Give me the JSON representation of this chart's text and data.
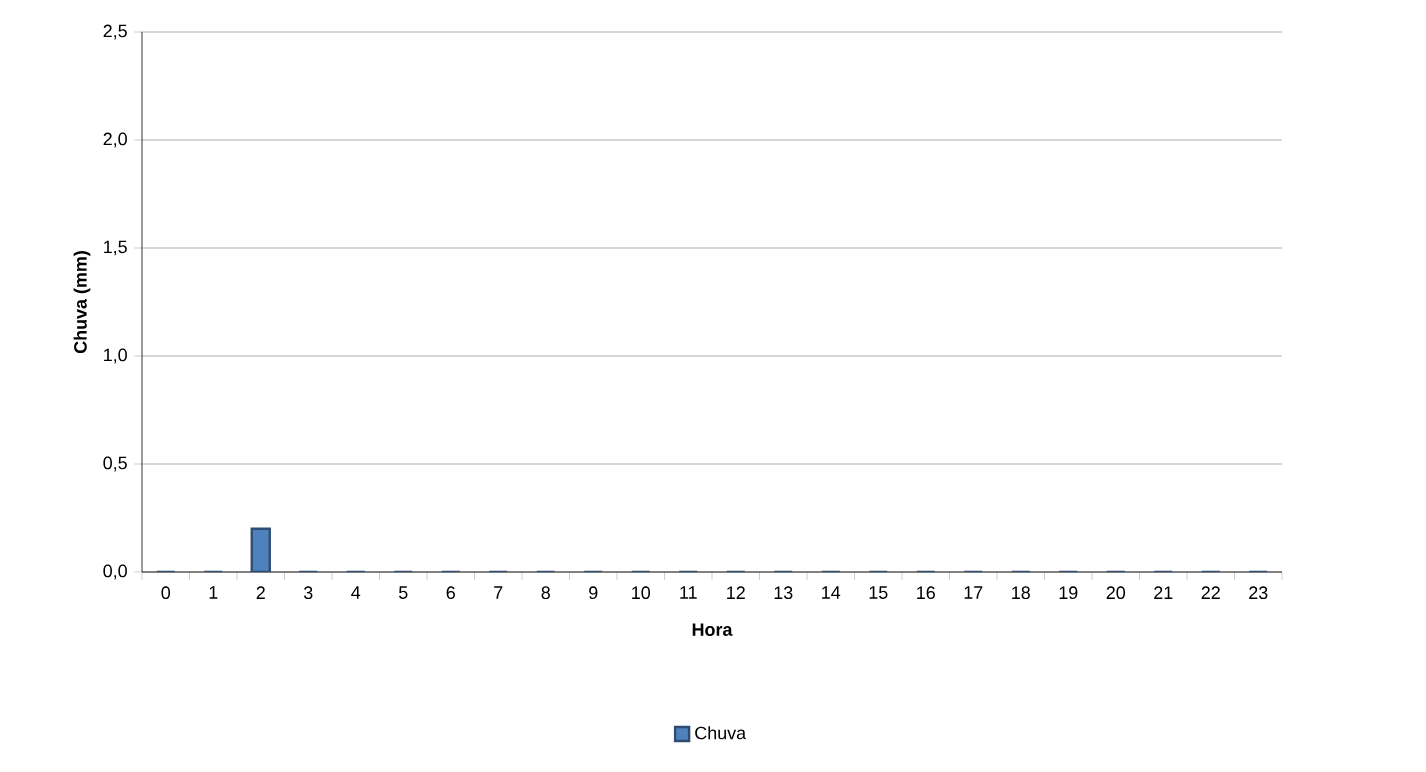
{
  "chart_data": {
    "type": "bar",
    "xlabel": "Hora",
    "ylabel": "Chuva (mm)",
    "categories": [
      "0",
      "1",
      "2",
      "3",
      "4",
      "5",
      "6",
      "7",
      "8",
      "9",
      "10",
      "11",
      "12",
      "13",
      "14",
      "15",
      "16",
      "17",
      "18",
      "19",
      "20",
      "21",
      "22",
      "23"
    ],
    "series": [
      {
        "name": "Chuva",
        "color": "#4f81bd",
        "values": [
          0,
          0,
          0.2,
          0,
          0,
          0,
          0,
          0,
          0,
          0,
          0,
          0,
          0,
          0,
          0,
          0,
          0,
          0,
          0,
          0,
          0,
          0,
          0,
          0
        ]
      }
    ],
    "ylim": [
      0,
      2.5
    ],
    "yticks": [
      {
        "value": 0,
        "label": "0,0"
      },
      {
        "value": 0.5,
        "label": "0,5"
      },
      {
        "value": 1,
        "label": "1,0"
      },
      {
        "value": 1.5,
        "label": "1,5"
      },
      {
        "value": 2,
        "label": "2,0"
      },
      {
        "value": 2.5,
        "label": "2,5"
      }
    ],
    "grid": "y",
    "legend": "bottom"
  }
}
